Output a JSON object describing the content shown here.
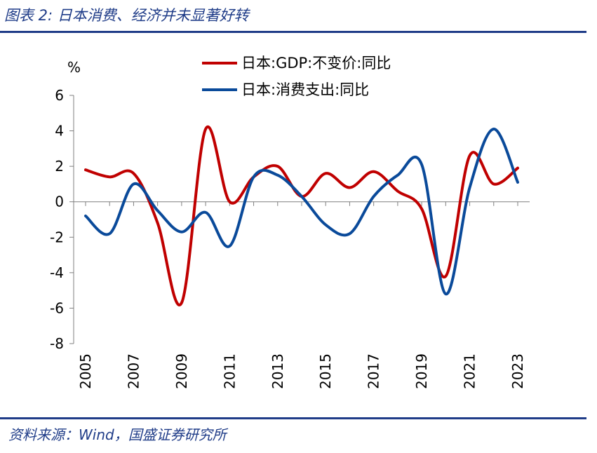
{
  "header": {
    "title": "图表 2:  日本消费、经济并未显著好转"
  },
  "footer": {
    "source": "资料来源：Wind，国盛证券研究所"
  },
  "colors": {
    "accent": "#1f3c88",
    "gdp": "#c00000",
    "consumption": "#0a4a9a"
  },
  "chart_data": {
    "type": "line",
    "ylabel": "%",
    "ylim": [
      -8,
      6
    ],
    "yticks": [
      6,
      4,
      2,
      0,
      -2,
      -4,
      -6,
      -8
    ],
    "xlim": [
      2005,
      2023
    ],
    "xticks": [
      2005,
      2007,
      2009,
      2011,
      2013,
      2015,
      2017,
      2019,
      2021,
      2023
    ],
    "x": [
      2005,
      2006,
      2007,
      2008,
      2009,
      2010,
      2011,
      2012,
      2013,
      2014,
      2015,
      2016,
      2017,
      2018,
      2019,
      2020,
      2021,
      2022,
      2023
    ],
    "series": [
      {
        "name": "日本:GDP:不变价:同比",
        "color": "#c00000",
        "values": [
          1.8,
          1.4,
          1.6,
          -1.2,
          -5.7,
          4.1,
          0.0,
          1.4,
          2.0,
          0.3,
          1.6,
          0.8,
          1.7,
          0.6,
          -0.4,
          -4.2,
          2.6,
          1.0,
          1.9
        ]
      },
      {
        "name": "日本:消费支出:同比",
        "color": "#0a4a9a",
        "values": [
          -0.8,
          -1.8,
          1.0,
          -0.5,
          -1.7,
          -0.6,
          -2.5,
          1.4,
          1.5,
          0.3,
          -1.3,
          -1.8,
          0.3,
          1.5,
          2.1,
          -5.2,
          0.8,
          4.1,
          1.1
        ]
      }
    ],
    "grid": false,
    "legend_position": "top-center"
  }
}
